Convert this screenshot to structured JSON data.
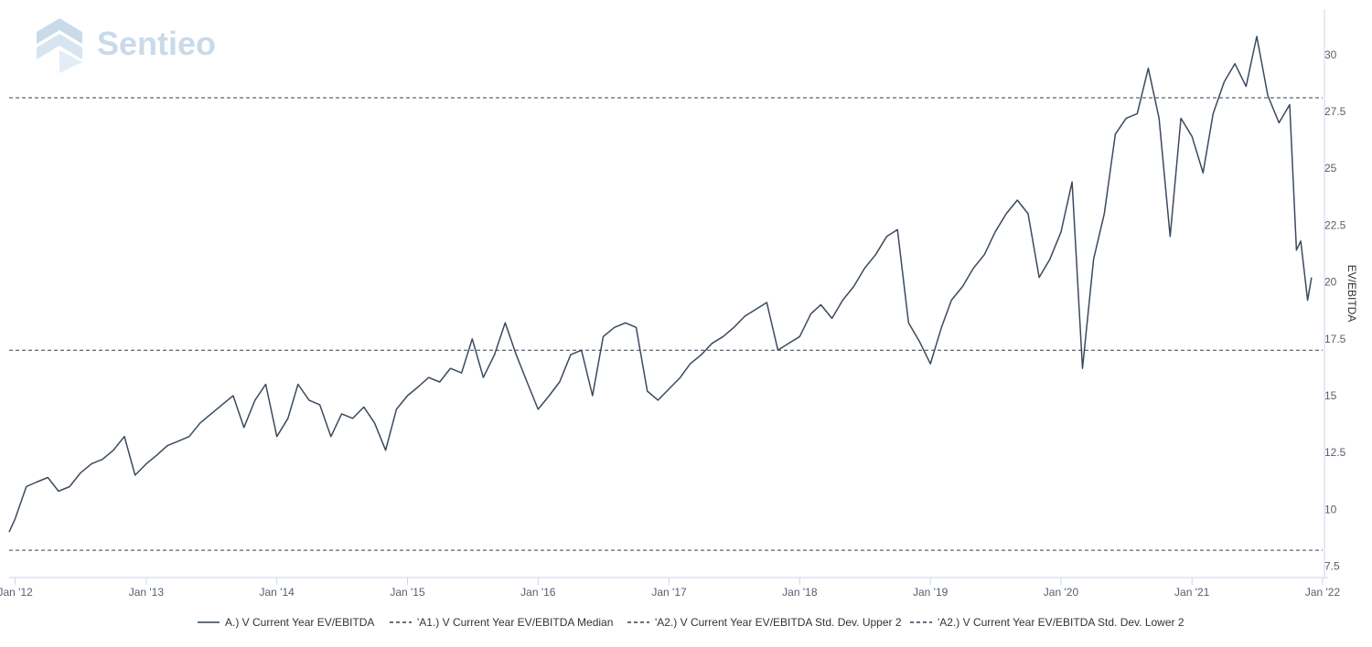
{
  "watermark": {
    "brand": "Sentieo",
    "color": "#c9daea"
  },
  "chart_data": {
    "type": "line",
    "title": "",
    "xlabel": "",
    "ylabel": "EV/EBITDA",
    "x_tick_labels": [
      "Jan '12",
      "Jan '13",
      "Jan '14",
      "Jan '15",
      "Jan '16",
      "Jan '17",
      "Jan '18",
      "Jan '19",
      "Jan '20",
      "Jan '21",
      "Jan '22"
    ],
    "x_range": [
      "2011-12-15",
      "2022-01-01"
    ],
    "y_ticks": [
      "7.5",
      "10",
      "12.5",
      "15",
      "17.5",
      "20",
      "22.5",
      "25",
      "27.5",
      "30"
    ],
    "ylim": [
      7.0,
      32.0
    ],
    "y_axis_position": "right",
    "grid": false,
    "legend_position": "bottom",
    "colors": {
      "line": "#3b4a5e",
      "dashed": "#2f4159",
      "axis": "#ccd6eb"
    },
    "series": [
      {
        "name": "A.) V Current Year EV/EBITDA",
        "style": "solid",
        "points": [
          [
            "2011-12-15",
            9.0
          ],
          [
            "2012-01-01",
            9.6
          ],
          [
            "2012-02-01",
            11.0
          ],
          [
            "2012-03-01",
            11.2
          ],
          [
            "2012-04-01",
            11.4
          ],
          [
            "2012-05-01",
            10.8
          ],
          [
            "2012-06-01",
            11.0
          ],
          [
            "2012-07-01",
            11.6
          ],
          [
            "2012-08-01",
            12.0
          ],
          [
            "2012-09-01",
            12.2
          ],
          [
            "2012-10-01",
            12.6
          ],
          [
            "2012-11-01",
            13.2
          ],
          [
            "2012-12-01",
            11.5
          ],
          [
            "2013-01-01",
            12.0
          ],
          [
            "2013-02-01",
            12.4
          ],
          [
            "2013-03-01",
            12.8
          ],
          [
            "2013-04-01",
            13.0
          ],
          [
            "2013-05-01",
            13.2
          ],
          [
            "2013-06-01",
            13.8
          ],
          [
            "2013-07-01",
            14.2
          ],
          [
            "2013-08-01",
            14.6
          ],
          [
            "2013-09-01",
            15.0
          ],
          [
            "2013-10-01",
            13.6
          ],
          [
            "2013-11-01",
            14.8
          ],
          [
            "2013-12-01",
            15.5
          ],
          [
            "2014-01-01",
            13.2
          ],
          [
            "2014-02-01",
            14.0
          ],
          [
            "2014-03-01",
            15.5
          ],
          [
            "2014-04-01",
            14.8
          ],
          [
            "2014-05-01",
            14.6
          ],
          [
            "2014-06-01",
            13.2
          ],
          [
            "2014-07-01",
            14.2
          ],
          [
            "2014-08-01",
            14.0
          ],
          [
            "2014-09-01",
            14.5
          ],
          [
            "2014-10-01",
            13.8
          ],
          [
            "2014-11-01",
            12.6
          ],
          [
            "2014-12-01",
            14.4
          ],
          [
            "2015-01-01",
            15.0
          ],
          [
            "2015-02-01",
            15.4
          ],
          [
            "2015-03-01",
            15.8
          ],
          [
            "2015-04-01",
            15.6
          ],
          [
            "2015-05-01",
            16.2
          ],
          [
            "2015-06-01",
            16.0
          ],
          [
            "2015-07-01",
            17.5
          ],
          [
            "2015-08-01",
            15.8
          ],
          [
            "2015-09-01",
            16.8
          ],
          [
            "2015-10-01",
            18.2
          ],
          [
            "2015-11-01",
            16.8
          ],
          [
            "2015-12-01",
            15.6
          ],
          [
            "2016-01-01",
            14.4
          ],
          [
            "2016-02-01",
            15.0
          ],
          [
            "2016-03-01",
            15.6
          ],
          [
            "2016-04-01",
            16.8
          ],
          [
            "2016-05-01",
            17.0
          ],
          [
            "2016-06-01",
            15.0
          ],
          [
            "2016-07-01",
            17.6
          ],
          [
            "2016-08-01",
            18.0
          ],
          [
            "2016-09-01",
            18.2
          ],
          [
            "2016-10-01",
            18.0
          ],
          [
            "2016-11-01",
            15.2
          ],
          [
            "2016-12-01",
            14.8
          ],
          [
            "2017-01-01",
            15.3
          ],
          [
            "2017-02-01",
            15.8
          ],
          [
            "2017-03-01",
            16.4
          ],
          [
            "2017-04-01",
            16.8
          ],
          [
            "2017-05-01",
            17.3
          ],
          [
            "2017-06-01",
            17.6
          ],
          [
            "2017-07-01",
            18.0
          ],
          [
            "2017-08-01",
            18.5
          ],
          [
            "2017-09-01",
            18.8
          ],
          [
            "2017-10-01",
            19.1
          ],
          [
            "2017-11-01",
            17.0
          ],
          [
            "2017-12-01",
            17.3
          ],
          [
            "2018-01-01",
            17.6
          ],
          [
            "2018-02-01",
            18.6
          ],
          [
            "2018-03-01",
            19.0
          ],
          [
            "2018-04-01",
            18.4
          ],
          [
            "2018-05-01",
            19.2
          ],
          [
            "2018-06-01",
            19.8
          ],
          [
            "2018-07-01",
            20.6
          ],
          [
            "2018-08-01",
            21.2
          ],
          [
            "2018-09-01",
            22.0
          ],
          [
            "2018-10-01",
            22.3
          ],
          [
            "2018-11-01",
            18.2
          ],
          [
            "2018-12-01",
            17.4
          ],
          [
            "2019-01-01",
            16.4
          ],
          [
            "2019-02-01",
            18.0
          ],
          [
            "2019-03-01",
            19.2
          ],
          [
            "2019-04-01",
            19.8
          ],
          [
            "2019-05-01",
            20.6
          ],
          [
            "2019-06-01",
            21.2
          ],
          [
            "2019-07-01",
            22.2
          ],
          [
            "2019-08-01",
            23.0
          ],
          [
            "2019-09-01",
            23.6
          ],
          [
            "2019-10-01",
            23.0
          ],
          [
            "2019-11-01",
            20.2
          ],
          [
            "2019-12-01",
            21.0
          ],
          [
            "2020-01-01",
            22.2
          ],
          [
            "2020-02-01",
            24.4
          ],
          [
            "2020-03-01",
            16.2
          ],
          [
            "2020-04-01",
            21.0
          ],
          [
            "2020-05-01",
            23.0
          ],
          [
            "2020-06-01",
            26.5
          ],
          [
            "2020-07-01",
            27.2
          ],
          [
            "2020-08-01",
            27.4
          ],
          [
            "2020-09-01",
            29.4
          ],
          [
            "2020-10-01",
            27.2
          ],
          [
            "2020-11-01",
            22.0
          ],
          [
            "2020-12-01",
            27.2
          ],
          [
            "2021-01-01",
            26.4
          ],
          [
            "2021-02-01",
            24.8
          ],
          [
            "2021-03-01",
            27.4
          ],
          [
            "2021-04-01",
            28.8
          ],
          [
            "2021-05-01",
            29.6
          ],
          [
            "2021-06-01",
            28.6
          ],
          [
            "2021-07-01",
            30.8
          ],
          [
            "2021-08-01",
            28.2
          ],
          [
            "2021-09-01",
            27.0
          ],
          [
            "2021-10-01",
            27.8
          ],
          [
            "2021-10-20",
            21.4
          ],
          [
            "2021-11-01",
            21.8
          ],
          [
            "2021-11-20",
            19.2
          ],
          [
            "2021-12-01",
            20.2
          ]
        ]
      },
      {
        "name": "'A1.) V Current Year EV/EBITDA Median",
        "style": "dashed",
        "y": 17.0
      },
      {
        "name": "'A2.) V Current Year EV/EBITDA Std. Dev. Upper 2",
        "style": "dashed",
        "y": 28.1
      },
      {
        "name": "'A2.) V Current Year EV/EBITDA Std. Dev. Lower 2",
        "style": "dashed",
        "y": 8.2
      }
    ]
  }
}
